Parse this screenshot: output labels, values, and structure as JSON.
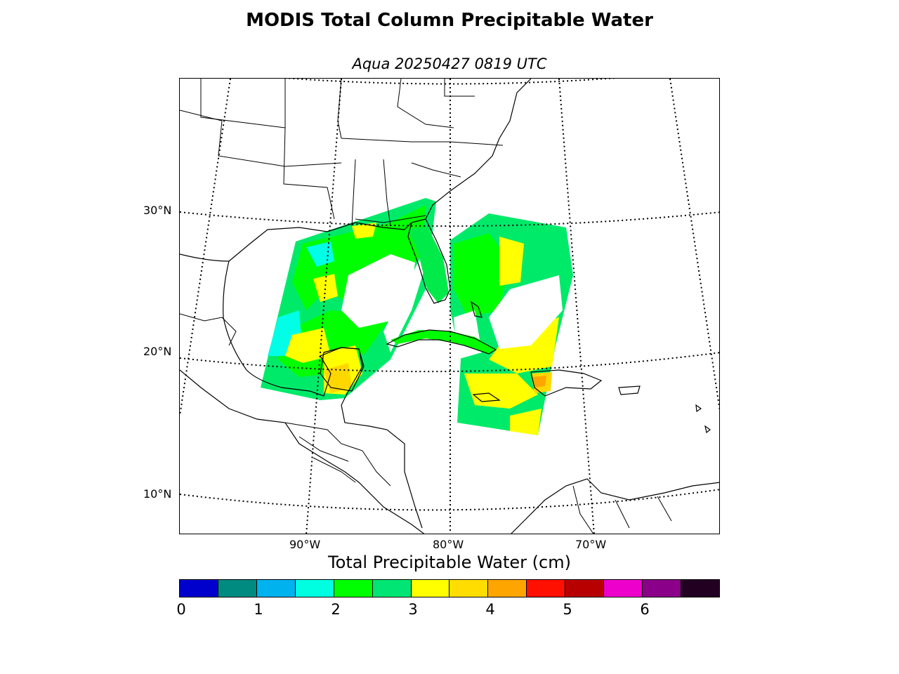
{
  "title": "MODIS Total Column Precipitable Water",
  "subtitle": "Aqua 20250427 0819 UTC",
  "map": {
    "latitude_labels": [
      "30°N",
      "20°N",
      "10°N"
    ],
    "longitude_labels": [
      "90°W",
      "80°W",
      "70°W"
    ],
    "graticule_style": "dotted",
    "coastlines": true,
    "country_borders": true,
    "state_borders": true
  },
  "colorbar": {
    "title": "Total Precipitable Water (cm)",
    "range": [
      0,
      7
    ],
    "step": 0.5,
    "tick_labels": [
      "0",
      "1",
      "2",
      "3",
      "4",
      "5",
      "6"
    ],
    "colors": [
      "#0000cd",
      "#008b80",
      "#00b2ee",
      "#00ffe0",
      "#00ff00",
      "#00e574",
      "#ffff00",
      "#ffdd00",
      "#ffa500",
      "#ff1000",
      "#b80000",
      "#ee00cc",
      "#8b0088",
      "#220022"
    ]
  }
}
